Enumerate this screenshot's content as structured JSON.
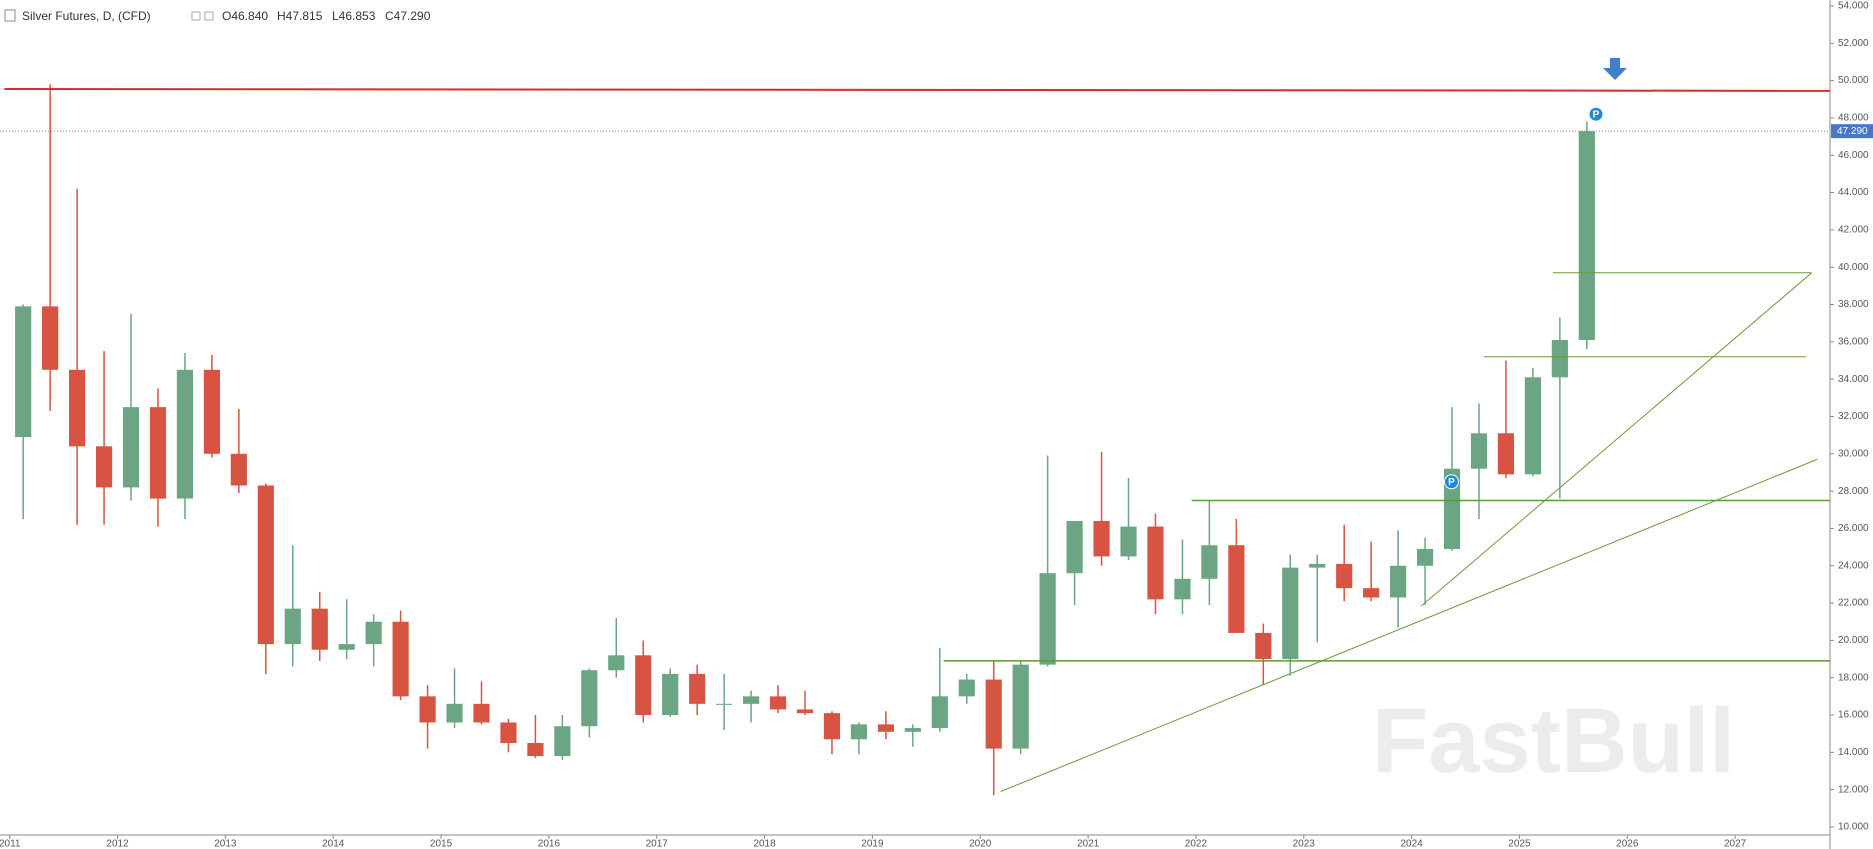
{
  "chart_data": {
    "type": "candlestick",
    "title": "Silver Futures, D, (CFD)",
    "ohlc": [
      "O46.840",
      "H47.815",
      "L46.853",
      "C47.290"
    ],
    "watermark": "FastBull",
    "up_color": "#6ba583",
    "down_color": "#d75442",
    "grid": false,
    "x": [
      2011,
      2011.25,
      2011.5,
      2011.75,
      2012,
      2012.25,
      2012.5,
      2012.75,
      2013,
      2013.25,
      2013.5,
      2013.75,
      2014,
      2014.25,
      2014.5,
      2014.75,
      2015,
      2015.25,
      2015.5,
      2015.75,
      2016,
      2016.25,
      2016.5,
      2016.75,
      2017,
      2017.25,
      2017.5,
      2017.75,
      2018,
      2018.25,
      2018.5,
      2018.75,
      2019,
      2019.25,
      2019.5,
      2019.75,
      2020,
      2020.25,
      2020.5,
      2020.75,
      2021,
      2021.25,
      2021.5,
      2021.75,
      2022,
      2022.25,
      2022.5,
      2022.75,
      2023,
      2023.25,
      2023.5,
      2023.75,
      2024,
      2024.25,
      2024.5,
      2024.75,
      2025,
      2025.25,
      2025.5
    ],
    "open": [
      30.9,
      37.9,
      34.5,
      30.4,
      28.2,
      32.5,
      27.6,
      34.5,
      30,
      28.3,
      19.8,
      21.7,
      19.5,
      19.8,
      21.0,
      17.0,
      15.6,
      16.6,
      15.6,
      14.5,
      13.8,
      15.4,
      18.4,
      19.2,
      16.0,
      18.2,
      16.6,
      16.6,
      17.0,
      16.3,
      16.1,
      14.7,
      15.5,
      15.1,
      15.3,
      17.0,
      17.9,
      14.2,
      18.7,
      23.6,
      26.4,
      24.5,
      26.1,
      22.2,
      23.3,
      25.1,
      20.4,
      19.0,
      23.9,
      24.1,
      22.8,
      22.3,
      24.0,
      24.9,
      29.2,
      31.1,
      28.9,
      34.1,
      36.1
    ],
    "high": [
      38,
      49.8,
      44.2,
      35.5,
      37.5,
      33.5,
      35.4,
      35.3,
      32.4,
      28.4,
      25.1,
      22.6,
      22.2,
      21.4,
      21.6,
      17.6,
      18.5,
      17.8,
      15.8,
      16.0,
      16.0,
      18.5,
      21.2,
      20.0,
      18.5,
      18.7,
      18.2,
      17.3,
      17.6,
      17.3,
      16.2,
      15.6,
      16.2,
      15.5,
      19.6,
      18.2,
      18.9,
      18.9,
      29.9,
      26.2,
      30.1,
      28.7,
      26.8,
      25.4,
      27.5,
      26.5,
      20.9,
      24.6,
      24.6,
      26.2,
      25.3,
      25.9,
      25.5,
      32.5,
      32.7,
      35.0,
      34.6,
      37.3,
      47.8
    ],
    "low": [
      26.5,
      32.3,
      26.2,
      26.2,
      27.5,
      26.1,
      26.5,
      29.8,
      27.9,
      18.2,
      18.6,
      18.9,
      19.0,
      18.6,
      16.8,
      14.2,
      15.3,
      15.5,
      14.0,
      13.7,
      13.6,
      14.8,
      18.0,
      15.6,
      15.9,
      16.0,
      15.2,
      15.6,
      16.1,
      16.0,
      13.9,
      13.9,
      14.7,
      14.3,
      15.1,
      16.6,
      11.7,
      13.9,
      18.6,
      21.9,
      24.0,
      24.3,
      21.4,
      21.4,
      21.9,
      20.4,
      17.6,
      18.1,
      19.9,
      22.1,
      22.1,
      20.7,
      21.9,
      24.8,
      26.5,
      28.7,
      28.8,
      27.6,
      35.6
    ],
    "close": [
      37.9,
      34.5,
      30.4,
      28.2,
      32.5,
      27.6,
      34.5,
      30.0,
      28.3,
      19.8,
      21.7,
      19.5,
      19.8,
      21.0,
      17.0,
      15.6,
      16.6,
      15.6,
      14.5,
      13.8,
      15.4,
      18.4,
      19.2,
      16.0,
      18.2,
      16.6,
      16.6,
      17.0,
      16.3,
      16.1,
      14.7,
      15.5,
      15.1,
      15.3,
      17.0,
      17.9,
      14.2,
      18.7,
      23.6,
      26.4,
      24.5,
      26.1,
      22.2,
      23.3,
      25.1,
      20.4,
      19.0,
      23.9,
      24.1,
      22.8,
      22.3,
      24.0,
      24.9,
      29.2,
      31.1,
      28.9,
      34.1,
      36.1,
      47.29
    ],
    "price_line": {
      "value": 47.29,
      "label": "47.290",
      "color": "#4a76c9"
    },
    "lines": [
      {
        "x1": 2010.95,
        "x2": 2027.88,
        "y1": 49.55,
        "y2": 49.45,
        "color": "#d32f2f",
        "width": 2
      },
      {
        "x1": 2019.66,
        "x2": 2027.88,
        "y1": 18.9,
        "y2": 18.9,
        "color": "#5b9a3a",
        "width": 1.5
      },
      {
        "x1": 2021.96,
        "x2": 2027.88,
        "y1": 27.5,
        "y2": 27.5,
        "color": "#5b9a3a",
        "width": 1.5
      },
      {
        "x1": 2024.67,
        "x2": 2027.66,
        "y1": 35.2,
        "y2": 35.2,
        "color": "#6a9a3a",
        "width": 1
      },
      {
        "x1": 2025.31,
        "x2": 2027.71,
        "y1": 39.7,
        "y2": 39.7,
        "color": "#6a9a3a",
        "width": 1
      },
      {
        "x1": 2020.19,
        "x2": 2027.76,
        "y1": 11.9,
        "y2": 29.7,
        "color": "#6a9a3a",
        "width": 1
      },
      {
        "x1": 2024.09,
        "x2": 2027.71,
        "y1": 21.84,
        "y2": 39.7,
        "color": "#6a9a3a",
        "width": 1
      }
    ],
    "markers": [
      {
        "x": 2024.37,
        "y": 28.5,
        "label": "P"
      },
      {
        "x": 2025.71,
        "y": 48.2,
        "label": "P"
      }
    ],
    "xlim": [
      2010.91,
      2027.88
    ],
    "xticks": [
      2011,
      2012,
      2013,
      2014,
      2015,
      2016,
      2017,
      2018,
      2019,
      2020,
      2021,
      2022,
      2023,
      2024,
      2025,
      2026,
      2027
    ],
    "ylim": [
      9.57,
      54.32
    ],
    "yticks": [
      {
        "value": 10,
        "label": "10.000"
      },
      {
        "value": 12,
        "label": "12.000"
      },
      {
        "value": 14,
        "label": "14.000"
      },
      {
        "value": 16,
        "label": "16.000"
      },
      {
        "value": 18,
        "label": "18.000"
      },
      {
        "value": 20,
        "label": "20.000"
      },
      {
        "value": 22,
        "label": "22.000"
      },
      {
        "value": 24,
        "label": "24.000"
      },
      {
        "value": 26,
        "label": "26.000"
      },
      {
        "value": 28,
        "label": "28.000"
      },
      {
        "value": 30,
        "label": "30.000"
      },
      {
        "value": 32,
        "label": "32.000"
      },
      {
        "value": 34,
        "label": "34.000"
      },
      {
        "value": 36,
        "label": "36.000"
      },
      {
        "value": 38,
        "label": "38.000"
      },
      {
        "value": 40,
        "label": "40.000"
      },
      {
        "value": 42,
        "label": "42.000"
      },
      {
        "value": 44,
        "label": "44.000"
      },
      {
        "value": 46,
        "label": "46.000"
      },
      {
        "value": 48,
        "label": "48.000"
      },
      {
        "value": 50,
        "label": "50.000"
      },
      {
        "value": 52,
        "label": "52.000"
      },
      {
        "value": 54,
        "label": "54.000"
      }
    ]
  }
}
